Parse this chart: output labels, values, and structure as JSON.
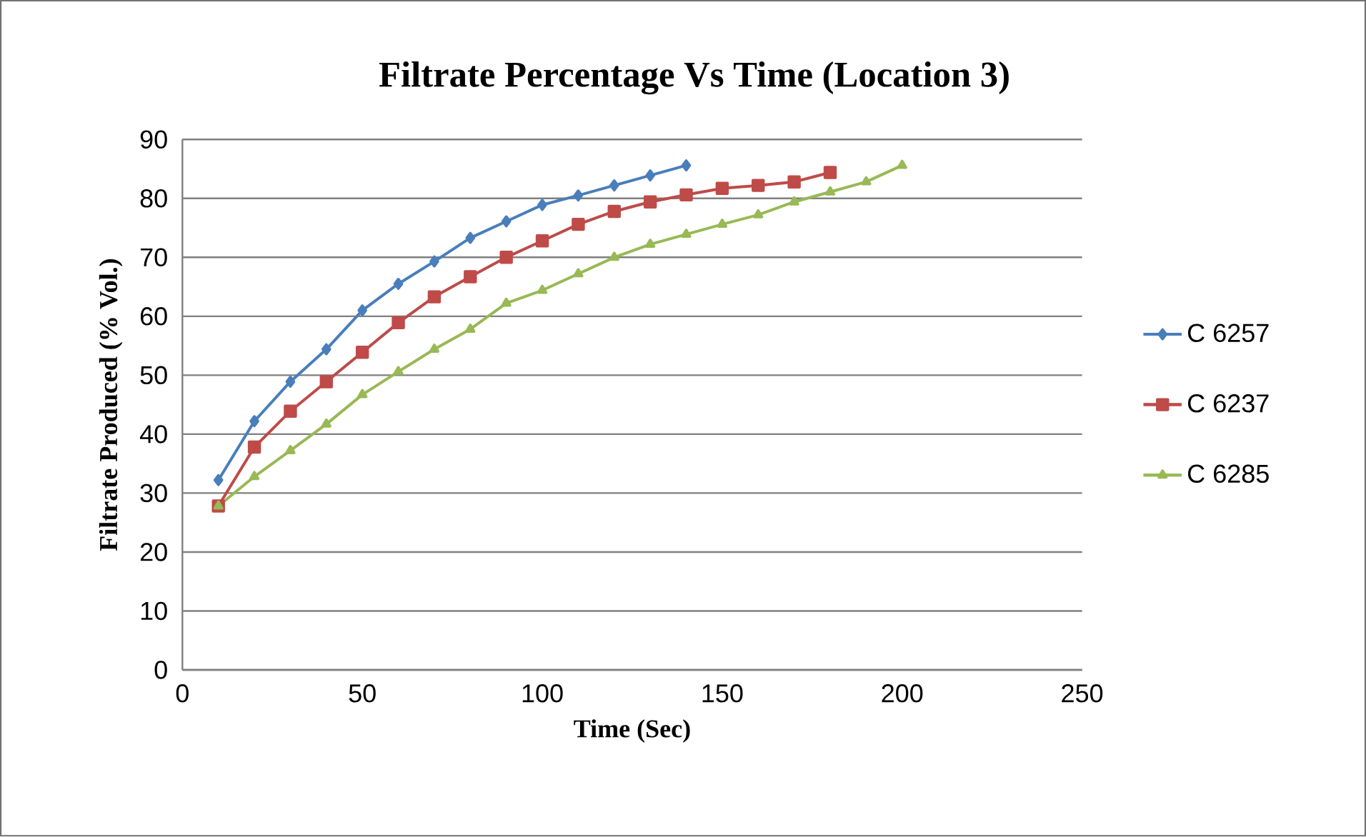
{
  "chart_data": {
    "type": "line",
    "title": "Filtrate Percentage Vs Time (Location 3)",
    "xlabel": "Time (Sec)",
    "ylabel": "Filtrate Produced (% Vol.)",
    "xlim": [
      0,
      250
    ],
    "xticks": [
      0,
      50,
      100,
      150,
      200,
      250
    ],
    "ylim": [
      0,
      90
    ],
    "yticks": [
      0,
      10,
      20,
      30,
      40,
      50,
      60,
      70,
      80,
      90
    ],
    "grid": "y",
    "legend": "right",
    "series": [
      {
        "name": "C 6257",
        "color": "#4a7ebb",
        "marker": "diamond",
        "x": [
          10,
          20,
          30,
          40,
          50,
          60,
          70,
          80,
          90,
          100,
          110,
          120,
          130,
          140
        ],
        "values": [
          32.2,
          42.2,
          48.9,
          54.4,
          61,
          65.5,
          69.3,
          73.3,
          76.1,
          78.9,
          80.5,
          82.2,
          83.9,
          85.6
        ]
      },
      {
        "name": "C 6237",
        "color": "#be4b48",
        "marker": "square",
        "x": [
          10,
          20,
          30,
          40,
          50,
          60,
          70,
          80,
          90,
          100,
          110,
          120,
          130,
          140,
          150,
          160,
          170,
          180
        ],
        "values": [
          27.8,
          37.8,
          43.9,
          48.9,
          53.9,
          58.9,
          63.3,
          66.7,
          70,
          72.8,
          75.6,
          77.8,
          79.4,
          80.6,
          81.7,
          82.2,
          82.8,
          84.4
        ]
      },
      {
        "name": "C 6285",
        "color": "#98b954",
        "marker": "triangle",
        "x": [
          10,
          20,
          30,
          40,
          50,
          60,
          70,
          80,
          90,
          100,
          110,
          120,
          130,
          140,
          150,
          160,
          170,
          180,
          190,
          200
        ],
        "values": [
          27.8,
          32.8,
          37.2,
          41.7,
          46.7,
          50.6,
          54.4,
          57.8,
          62.2,
          64.4,
          67.2,
          70,
          72.2,
          73.9,
          75.6,
          77.2,
          79.4,
          81.1,
          82.8,
          85.6
        ]
      }
    ]
  }
}
